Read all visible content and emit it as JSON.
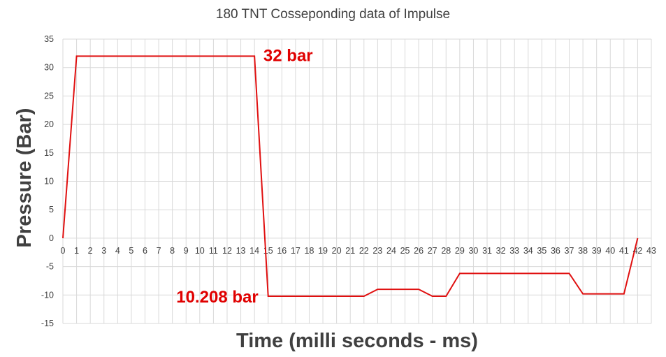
{
  "chart_data": {
    "type": "line",
    "title": "180 TNT Cosseponding data of Impulse",
    "xlabel": "Time (milli seconds - ms)",
    "ylabel": "Pressure (Bar)",
    "xlim": [
      0,
      43
    ],
    "ylim": [
      -15,
      35
    ],
    "x_ticks": [
      "0",
      "1",
      "2",
      "3",
      "4",
      "5",
      "6",
      "7",
      "8",
      "9",
      "10",
      "11",
      "12",
      "13",
      "14",
      "15",
      "16",
      "17",
      "18",
      "19",
      "20",
      "21",
      "22",
      "23",
      "24",
      "25",
      "26",
      "27",
      "28",
      "29",
      "30",
      "31",
      "32",
      "33",
      "34",
      "35",
      "36",
      "37",
      "38",
      "39",
      "40",
      "41",
      "42",
      "43"
    ],
    "y_ticks": [
      "-15",
      "-10",
      "-5",
      "0",
      "5",
      "10",
      "15",
      "20",
      "25",
      "30",
      "35"
    ],
    "grid": true,
    "series_color": "#e01010",
    "series": [
      {
        "x": [
          0,
          1,
          14,
          15,
          22,
          23,
          26,
          27,
          28,
          29,
          37,
          38,
          41,
          42
        ],
        "y": [
          0,
          32,
          32,
          -10.208,
          -10.208,
          -9,
          -9,
          -10.208,
          -10.208,
          -6.2,
          -6.2,
          -9.8,
          -9.8,
          0
        ]
      }
    ],
    "annotations": [
      {
        "text": "32 bar",
        "x": 14.5,
        "y": 32
      },
      {
        "text": "10.208 bar",
        "x": 15,
        "y": -10.208
      }
    ]
  }
}
